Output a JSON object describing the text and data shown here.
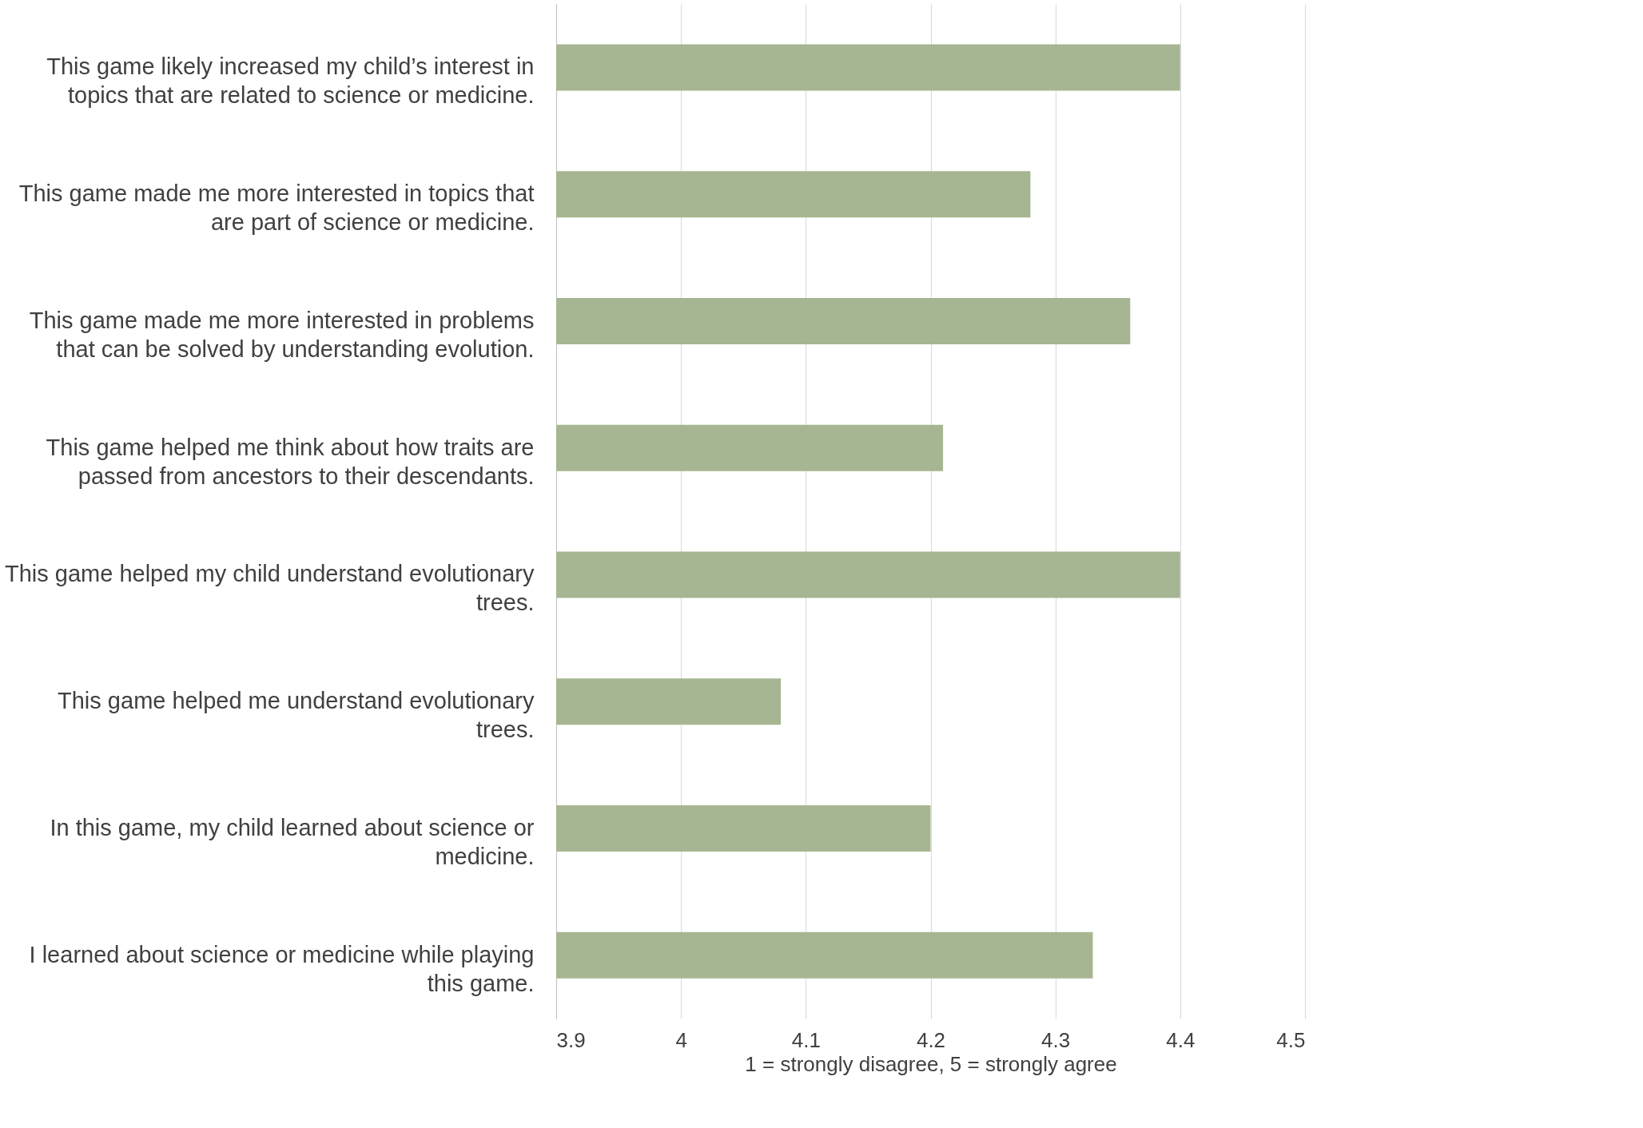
{
  "chart_data": {
    "type": "bar",
    "orientation": "horizontal",
    "xlabel": "1 = strongly disagree, 5 = strongly agree",
    "categories": [
      "This game likely increased my child’s interest in topics that are related to science or medicine.",
      "This game made me more interested in topics that are part of science or medicine.",
      "This game made me more interested in problems that can be solved by understanding evolution.",
      "This game helped me think about how traits are passed from ancestors to their descendants.",
      "This game helped my child understand evolutionary trees.",
      "This game helped me understand evolutionary trees.",
      "In this game, my child learned about science or medicine.",
      "I learned about science or medicine while playing this game."
    ],
    "values": [
      4.4,
      4.28,
      4.36,
      4.21,
      4.4,
      4.08,
      4.2,
      4.33
    ],
    "color": "#a7b692",
    "xlim": [
      3.9,
      4.5
    ],
    "xticks": [
      3.9,
      4,
      4.1,
      4.2,
      4.3,
      4.4,
      4.5
    ],
    "grid": "x"
  }
}
